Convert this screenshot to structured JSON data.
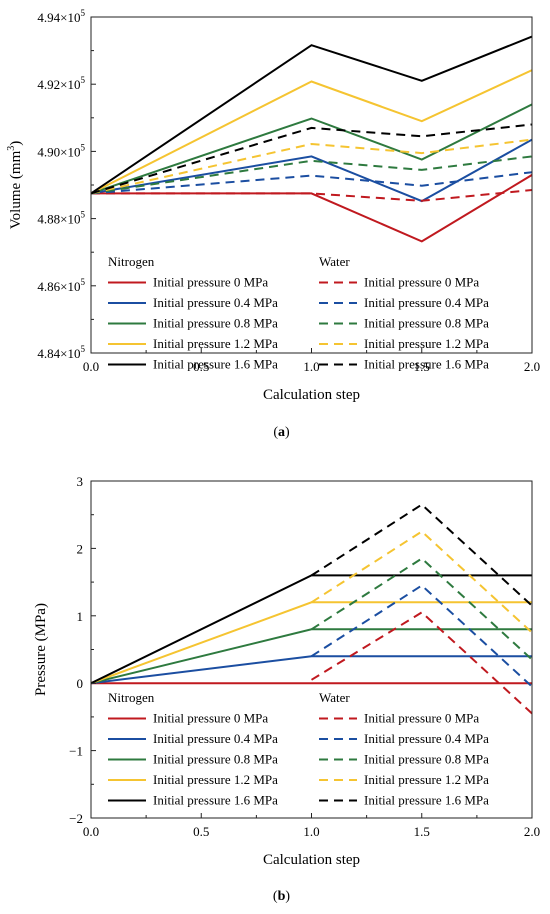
{
  "colors": {
    "p0": "#c0191f",
    "p04": "#1b4ea1",
    "p08": "#2e7a3f",
    "p12": "#f5c431",
    "p16": "#000000"
  },
  "chart_data": [
    {
      "type": "line",
      "caption": "(a)",
      "caption_bold": "a",
      "xlabel": "Calculation step",
      "ylabel": "Volume (mm",
      "ylabel_sup": "3",
      "ylabel_end": ")",
      "xlim": [
        0,
        2.0
      ],
      "ylim": [
        484000,
        494000
      ],
      "x_ticks": [
        0,
        0.5,
        1.0,
        1.5,
        2.0
      ],
      "x_tick_labels": [
        "0.0",
        "0.5",
        "1.0",
        "1.5",
        "2.0"
      ],
      "y_ticks": [
        484000,
        486000,
        488000,
        490000,
        492000,
        494000
      ],
      "y_tick_labels": [
        {
          "mantissa": "4.84×10",
          "exp": "5"
        },
        {
          "mantissa": "4.86×10",
          "exp": "5"
        },
        {
          "mantissa": "4.88×10",
          "exp": "5"
        },
        {
          "mantissa": "4.90×10",
          "exp": "5"
        },
        {
          "mantissa": "4.92×10",
          "exp": "5"
        },
        {
          "mantissa": "4.94×10",
          "exp": "5"
        }
      ],
      "legend": {
        "placement": "bottom",
        "group_titles": [
          "Nitrogen",
          "Water"
        ]
      },
      "series": [
        {
          "name": "Initial pressure 0 MPa",
          "group": "Nitrogen",
          "color_key": "p0",
          "dash": false,
          "x": [
            0,
            1.0,
            1.5,
            2.0
          ],
          "y": [
            488750,
            488750,
            487320,
            489300
          ]
        },
        {
          "name": "Initial pressure 0.4 MPa",
          "group": "Nitrogen",
          "color_key": "p04",
          "dash": false,
          "x": [
            0,
            1.0,
            1.5,
            2.0
          ],
          "y": [
            488750,
            489850,
            488520,
            490350
          ]
        },
        {
          "name": "Initial pressure 0.8 MPa",
          "group": "Nitrogen",
          "color_key": "p08",
          "dash": false,
          "x": [
            0,
            1.0,
            1.5,
            2.0
          ],
          "y": [
            488750,
            490980,
            489760,
            491400
          ]
        },
        {
          "name": "Initial pressure 1.2 MPa",
          "group": "Nitrogen",
          "color_key": "p12",
          "dash": false,
          "x": [
            0,
            1.0,
            1.5,
            2.0
          ],
          "y": [
            488750,
            492080,
            490900,
            492420
          ]
        },
        {
          "name": "Initial pressure 1.6 MPa",
          "group": "Nitrogen",
          "color_key": "p16",
          "dash": false,
          "x": [
            0,
            1.0,
            1.5,
            2.0
          ],
          "y": [
            488750,
            493160,
            492100,
            493420
          ]
        },
        {
          "name": "Initial pressure 0 MPa",
          "group": "Water",
          "color_key": "p0",
          "dash": true,
          "x": [
            0,
            1.0,
            1.5,
            2.0
          ],
          "y": [
            488750,
            488750,
            488530,
            488850
          ]
        },
        {
          "name": "Initial pressure 0.4 MPa",
          "group": "Water",
          "color_key": "p04",
          "dash": true,
          "x": [
            0,
            1.0,
            1.5,
            2.0
          ],
          "y": [
            488750,
            489280,
            488980,
            489380
          ]
        },
        {
          "name": "Initial pressure 0.8 MPa",
          "group": "Water",
          "color_key": "p08",
          "dash": true,
          "x": [
            0,
            1.0,
            1.5,
            2.0
          ],
          "y": [
            488750,
            489720,
            489450,
            489850
          ]
        },
        {
          "name": "Initial pressure 1.2 MPa",
          "group": "Water",
          "color_key": "p12",
          "dash": true,
          "x": [
            0,
            1.0,
            1.5,
            2.0
          ],
          "y": [
            488750,
            490220,
            489950,
            490350
          ]
        },
        {
          "name": "Initial pressure 1.6 MPa",
          "group": "Water",
          "color_key": "p16",
          "dash": true,
          "x": [
            0,
            1.0,
            1.5,
            2.0
          ],
          "y": [
            488750,
            490700,
            490450,
            490800
          ]
        }
      ]
    },
    {
      "type": "line",
      "caption": "(b)",
      "caption_bold": "b",
      "xlabel": "Calculation step",
      "ylabel": "Pressure (MPa)",
      "xlim": [
        0,
        2.0
      ],
      "ylim": [
        -2,
        3
      ],
      "x_ticks": [
        0,
        0.5,
        1.0,
        1.5,
        2.0
      ],
      "x_tick_labels": [
        "0.0",
        "0.5",
        "1.0",
        "1.5",
        "2.0"
      ],
      "y_ticks": [
        -2,
        -1,
        0,
        1,
        2,
        3
      ],
      "y_tick_labels": [
        "−2",
        "−1",
        "0",
        "1",
        "2",
        "3"
      ],
      "legend": {
        "placement": "bottom",
        "group_titles": [
          "Nitrogen",
          "Water"
        ]
      },
      "series": [
        {
          "name": "Initial pressure 0 MPa",
          "group": "Nitrogen",
          "color_key": "p0",
          "dash": false,
          "x": [
            0,
            1.0,
            1.5,
            2.0
          ],
          "y": [
            0,
            0,
            0,
            0
          ]
        },
        {
          "name": "Initial pressure 0.4 MPa",
          "group": "Nitrogen",
          "color_key": "p04",
          "dash": false,
          "x": [
            0,
            1.0,
            1.5,
            2.0
          ],
          "y": [
            0,
            0.4,
            0.4,
            0.4
          ]
        },
        {
          "name": "Initial pressure 0.8 MPa",
          "group": "Nitrogen",
          "color_key": "p08",
          "dash": false,
          "x": [
            0,
            1.0,
            1.5,
            2.0
          ],
          "y": [
            0,
            0.8,
            0.8,
            0.8
          ]
        },
        {
          "name": "Initial pressure 1.2 MPa",
          "group": "Nitrogen",
          "color_key": "p12",
          "dash": false,
          "x": [
            0,
            1.0,
            1.5,
            2.0
          ],
          "y": [
            0,
            1.2,
            1.2,
            1.2
          ]
        },
        {
          "name": "Initial pressure 1.6 MPa",
          "group": "Nitrogen",
          "color_key": "p16",
          "dash": false,
          "x": [
            0,
            1.0,
            1.5,
            2.0
          ],
          "y": [
            0,
            1.6,
            1.6,
            1.6
          ]
        },
        {
          "name": "Initial pressure 0 MPa",
          "group": "Water",
          "color_key": "p0",
          "dash": true,
          "x": [
            1.0,
            1.5,
            2.0
          ],
          "y": [
            0.05,
            1.05,
            -0.45
          ]
        },
        {
          "name": "Initial pressure 0.4 MPa",
          "group": "Water",
          "color_key": "p04",
          "dash": true,
          "x": [
            1.0,
            1.5,
            2.0
          ],
          "y": [
            0.4,
            1.45,
            -0.05
          ]
        },
        {
          "name": "Initial pressure 0.8 MPa",
          "group": "Water",
          "color_key": "p08",
          "dash": true,
          "x": [
            1.0,
            1.5,
            2.0
          ],
          "y": [
            0.8,
            1.85,
            0.35
          ]
        },
        {
          "name": "Initial pressure 1.2 MPa",
          "group": "Water",
          "color_key": "p12",
          "dash": true,
          "x": [
            1.0,
            1.5,
            2.0
          ],
          "y": [
            1.2,
            2.25,
            0.75
          ]
        },
        {
          "name": "Initial pressure 1.6 MPa",
          "group": "Water",
          "color_key": "p16",
          "dash": true,
          "x": [
            1.0,
            1.5,
            2.0
          ],
          "y": [
            1.6,
            2.65,
            1.15
          ]
        }
      ]
    }
  ]
}
